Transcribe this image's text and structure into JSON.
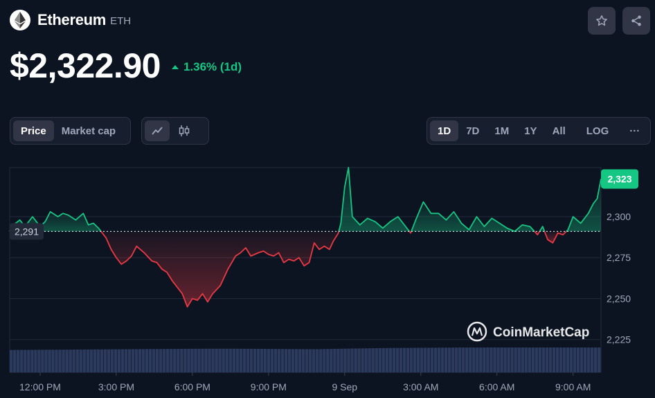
{
  "coin": {
    "name": "Ethereum",
    "symbol": "ETH"
  },
  "price": {
    "value": "$2,322.90",
    "change": "1.36% (1d)"
  },
  "actions": {
    "watchlist_icon": "star-icon",
    "share_icon": "share-icon"
  },
  "chart_tabs": [
    "Price",
    "Market cap"
  ],
  "chart_type_buttons": [
    "line-chart-icon",
    "candlestick-icon"
  ],
  "time_ranges": [
    "1D",
    "7D",
    "1M",
    "1Y",
    "All"
  ],
  "scale_button": "LOG",
  "more_button": "···",
  "watermark": "CoinMarketCap",
  "colors": {
    "background": "#0d1421",
    "up": "#16c784",
    "down": "#ea3943",
    "volume": "#2c3a5e",
    "grid": "#222a3a"
  },
  "chart_data": {
    "type": "area",
    "baseline_value": 2291,
    "baseline_label": "2,291",
    "current_value": 2323,
    "current_label": "2,323",
    "ylim": [
      2205,
      2330
    ],
    "y_ticks": [
      2225,
      2250,
      2275,
      2300
    ],
    "y_tick_labels": [
      "2,225",
      "2,250",
      "2,275",
      "2,300"
    ],
    "x_ticks": [
      "12:00 PM",
      "3:00 PM",
      "6:00 PM",
      "9:00 PM",
      "9 Sep",
      "3:00 AM",
      "6:00 AM",
      "9:00 AM"
    ],
    "x_tick_hours": [
      1.2,
      4.2,
      7.2,
      10.2,
      13.2,
      16.2,
      19.2,
      22.2
    ],
    "x_range_hours": [
      0,
      23.3
    ],
    "series": [
      {
        "hours": [
          0,
          0.15,
          0.4,
          0.6,
          0.9,
          1.2,
          1.4,
          1.6,
          1.9,
          2.1,
          2.3,
          2.6,
          2.9,
          3.1,
          3.3,
          3.5,
          3.65,
          3.8,
          4.0,
          4.2,
          4.4,
          4.6,
          4.8,
          5.0,
          5.3,
          5.6,
          5.8,
          6.0,
          6.2,
          6.4,
          6.6,
          6.8,
          7.0,
          7.2,
          7.4,
          7.6,
          7.8,
          8.0,
          8.3,
          8.6,
          8.9,
          9.1,
          9.3,
          9.5,
          9.8,
          10.0,
          10.2,
          10.4,
          10.6,
          10.8,
          11.0,
          11.2,
          11.4,
          11.6,
          11.8,
          12.0,
          12.2,
          12.4,
          12.6,
          12.75,
          12.95,
          13.05,
          13.2,
          13.35,
          13.5,
          13.8,
          14.1,
          14.4,
          14.7,
          15.0,
          15.3,
          15.6,
          15.8,
          16.0,
          16.3,
          16.6,
          16.9,
          17.2,
          17.5,
          17.8,
          18.1,
          18.4,
          18.7,
          19.0,
          19.3,
          19.6,
          19.9,
          20.2,
          20.5,
          20.8,
          21.0,
          21.2,
          21.4,
          21.6,
          21.8,
          22.0,
          22.2,
          22.5,
          22.8,
          23.0,
          23.15,
          23.3
        ],
        "values": [
          2291,
          2295,
          2298,
          2294,
          2300,
          2294,
          2297,
          2303,
          2300,
          2302,
          2301,
          2298,
          2302,
          2295,
          2296,
          2293,
          2290,
          2287,
          2280,
          2275,
          2271,
          2273,
          2276,
          2282,
          2278,
          2273,
          2272,
          2268,
          2266,
          2261,
          2257,
          2253,
          2245,
          2250,
          2249,
          2253,
          2248,
          2253,
          2258,
          2268,
          2276,
          2278,
          2281,
          2276,
          2278,
          2279,
          2277,
          2276,
          2278,
          2272,
          2274,
          2273,
          2275,
          2270,
          2272,
          2284,
          2280,
          2282,
          2280,
          2285,
          2290,
          2296,
          2318,
          2330,
          2300,
          2295,
          2299,
          2297,
          2293,
          2297,
          2300,
          2294,
          2290,
          2298,
          2309,
          2302,
          2302,
          2298,
          2303,
          2296,
          2292,
          2300,
          2294,
          2299,
          2296,
          2293,
          2291,
          2295,
          2294,
          2289,
          2294,
          2286,
          2284,
          2290,
          2289,
          2292,
          2300,
          2296,
          2302,
          2308,
          2311,
          2323
        ]
      },
      {
        "name": "Volume",
        "hours": [
          0,
          1.5,
          3.0,
          4.5,
          6.0,
          7.5,
          9.0,
          10.5,
          12.0,
          13.5,
          15.0,
          16.5,
          18.0,
          19.5,
          21.0,
          22.5,
          23.3
        ],
        "values": [
          0.9,
          0.91,
          0.92,
          0.93,
          0.94,
          0.95,
          0.95,
          0.94,
          0.93,
          0.96,
          0.98,
          0.99,
          1.0,
          1.0,
          1.0,
          1.0,
          1.0
        ]
      }
    ]
  }
}
